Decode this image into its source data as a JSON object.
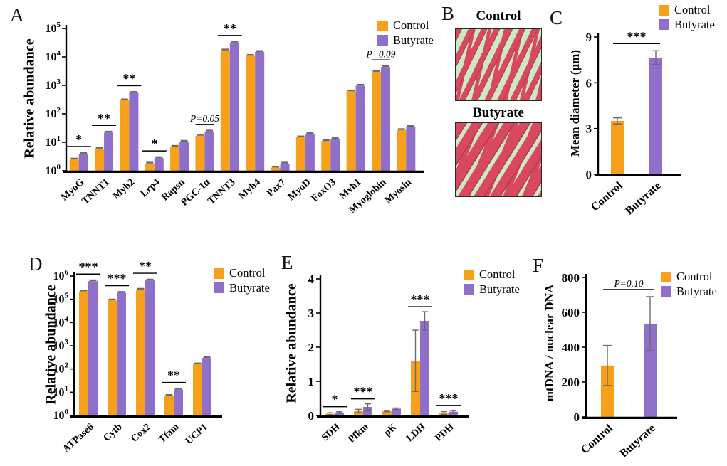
{
  "figure": {
    "background": "#FFFFFF",
    "colors": {
      "control": "#F9A01B",
      "butyrate": "#8F6FC9",
      "error_bar": "#6A6A6A",
      "axis": "#000000",
      "histology_background": "#CDE8C5",
      "histology_fiber": "#D9495E",
      "histology_fiber_dark": "#B03850"
    },
    "panels": {
      "A": {
        "label": "A"
      },
      "B": {
        "label": "B",
        "images": [
          {
            "title": "Control",
            "style": "thin-fibers"
          },
          {
            "title": "Butyrate",
            "style": "thick-fibers"
          }
        ]
      },
      "C": {
        "label": "C"
      },
      "D": {
        "label": "D"
      },
      "E": {
        "label": "E"
      },
      "F": {
        "label": "F"
      }
    }
  },
  "chart_data": [
    {
      "id": "A",
      "type": "bar",
      "variant": "grouped",
      "scale": "log",
      "ylabel": "Relative abundance",
      "ylim": [
        1,
        100000
      ],
      "ytick_exponents": [
        0,
        1,
        2,
        3,
        4,
        5
      ],
      "categories": [
        "MyoG",
        "TNNT1",
        "Myh2",
        "Lrp4",
        "Rapsn",
        "PGC-1α",
        "TNNT3",
        "Myh4",
        "Pax7",
        "MyoD",
        "FoxO3",
        "Myh1",
        "Myoglobin",
        "Myosin"
      ],
      "series": [
        {
          "name": "Control",
          "color_key": "control",
          "values": [
            2.5,
            6,
            300,
            1.8,
            7,
            17,
            17000,
            11000,
            1.3,
            15,
            11,
            620,
            3000,
            27
          ]
        },
        {
          "name": "Butyrate",
          "color_key": "butyrate",
          "values": [
            4,
            22,
            550,
            2.8,
            10.5,
            24,
            32000,
            15000,
            1.8,
            20,
            13,
            980,
            4400,
            35
          ]
        }
      ],
      "error_caps": "tiny",
      "annotations": [
        {
          "category": "MyoG",
          "text": "*"
        },
        {
          "category": "TNNT1",
          "text": "**"
        },
        {
          "category": "Myh2",
          "text": "**"
        },
        {
          "category": "Lrp4",
          "text": "*"
        },
        {
          "category": "PGC-1α",
          "text": "P=0.05",
          "italic": true
        },
        {
          "category": "TNNT3",
          "text": "**"
        },
        {
          "category": "Myoglobin",
          "text": "P=0.09",
          "italic": true
        }
      ],
      "legend": [
        "Control",
        "Butyrate"
      ],
      "legend_position": "top-right",
      "grid": false
    },
    {
      "id": "C",
      "type": "bar",
      "variant": "simple",
      "scale": "linear",
      "ylabel": "Mean diameter (μm)",
      "ylim": [
        0,
        9
      ],
      "yticks": [
        0,
        3,
        6,
        9
      ],
      "categories": [
        "Control",
        "Butyrate"
      ],
      "values": [
        3.5,
        7.65
      ],
      "errors": [
        0.2,
        0.45
      ],
      "bar_colors": [
        "control",
        "butyrate"
      ],
      "annotations": [
        {
          "span": [
            0,
            1
          ],
          "text": "***"
        }
      ],
      "legend": [
        "Control",
        "Butyrate"
      ],
      "legend_position": "top-right",
      "grid": false
    },
    {
      "id": "D",
      "type": "bar",
      "variant": "grouped",
      "scale": "log",
      "ylabel": "Relative abundance",
      "ylim": [
        1,
        1000000
      ],
      "ytick_exponents": [
        0,
        1,
        2,
        3,
        4,
        5,
        6
      ],
      "categories": [
        "ATPase6",
        "Cytb",
        "Cox2",
        "Tfam",
        "UCP1"
      ],
      "series": [
        {
          "name": "Control",
          "color_key": "control",
          "values": [
            220000,
            90000,
            260000,
            7,
            160
          ]
        },
        {
          "name": "Butyrate",
          "color_key": "butyrate",
          "values": [
            600000,
            190000,
            650000,
            13,
            300
          ]
        }
      ],
      "error_caps": "tiny",
      "annotations": [
        {
          "category": "ATPase6",
          "text": "***"
        },
        {
          "category": "Cytb",
          "text": "***"
        },
        {
          "category": "Cox2",
          "text": "**"
        },
        {
          "category": "Tfam",
          "text": "**"
        }
      ],
      "legend": [
        "Control",
        "Butyrate"
      ],
      "legend_position": "right",
      "grid": false
    },
    {
      "id": "E",
      "type": "bar",
      "variant": "grouped",
      "scale": "linear",
      "ylabel": "Relative abundance",
      "ylim": [
        0,
        4
      ],
      "yticks": [
        0,
        1,
        2,
        3,
        4
      ],
      "categories": [
        "SDH",
        "Pfkm",
        "pK",
        "LDH",
        "PDH"
      ],
      "series": [
        {
          "name": "Control",
          "color_key": "control",
          "values": [
            0.05,
            0.13,
            0.13,
            1.6,
            0.07
          ],
          "errors": [
            0.03,
            0.05,
            0.02,
            0.9,
            0.04
          ]
        },
        {
          "name": "Butyrate",
          "color_key": "butyrate",
          "values": [
            0.09,
            0.25,
            0.2,
            2.77,
            0.11
          ],
          "errors": [
            0.02,
            0.09,
            0.02,
            0.27,
            0.04
          ]
        }
      ],
      "annotations": [
        {
          "category": "SDH",
          "text": "*"
        },
        {
          "category": "Pfkm",
          "text": "***"
        },
        {
          "category": "LDH",
          "text": "***"
        },
        {
          "category": "PDH",
          "text": "***"
        }
      ],
      "legend": [
        "Control",
        "Butyrate"
      ],
      "legend_position": "right",
      "grid": false
    },
    {
      "id": "F",
      "type": "bar",
      "variant": "simple",
      "scale": "linear",
      "ylabel": "mtDNA / nuclear DNA",
      "ylim": [
        0,
        800
      ],
      "yticks": [
        0,
        200,
        400,
        600,
        800
      ],
      "categories": [
        "Control",
        "Butyrate"
      ],
      "values": [
        295,
        535
      ],
      "errors": [
        115,
        155
      ],
      "bar_colors": [
        "control",
        "butyrate"
      ],
      "annotations": [
        {
          "span": [
            0,
            1
          ],
          "text": "P=0.10",
          "italic": true
        }
      ],
      "legend": [
        "Control",
        "Butyrate"
      ],
      "legend_position": "top-right",
      "grid": false
    }
  ]
}
